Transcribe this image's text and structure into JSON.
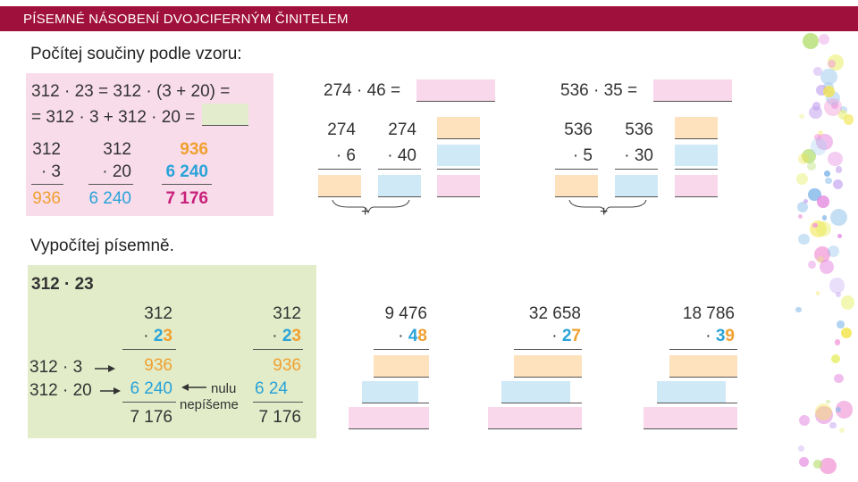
{
  "header": {
    "title": "PÍSEMNÉ NÁSOBENÍ DVOJCIFERNÝM ČINITELEM"
  },
  "section1": {
    "heading": "Počítej součiny podle vzoru:",
    "example": {
      "line1": "312 · 23 = 312 · (3 + 20) =",
      "line2": "= 312 · 3 + 312 · 20 =",
      "col1": {
        "top": "312",
        "mult": "· 3",
        "result": "936"
      },
      "col2": {
        "top": "312",
        "mult": "· 20",
        "result": "6 240"
      },
      "col3": {
        "a": "936",
        "b": "6 240",
        "sum": "7 176"
      }
    },
    "task1": {
      "expr": "274 · 46 =",
      "col1": {
        "top": "274",
        "mult": "· 6"
      },
      "col2": {
        "top": "274",
        "mult": "· 40"
      },
      "plus": "+"
    },
    "task2": {
      "expr": "536 · 35 =",
      "col1": {
        "top": "536",
        "mult": "· 5"
      },
      "col2": {
        "top": "536",
        "mult": "· 30"
      },
      "plus": "+"
    }
  },
  "section2": {
    "heading": "Vypočítej písemně.",
    "example": {
      "title": "312 · 23",
      "left": {
        "top": "312",
        "dot": "· ",
        "d1": "2",
        "d2": "3",
        "p1": "936",
        "p2": "6 240",
        "sum": "7 176"
      },
      "right": {
        "top": "312",
        "dot": "· ",
        "d1": "2",
        "d2": "3",
        "p1": "936",
        "p2": "6 24",
        "sum": "7 176"
      },
      "row1_label": "312 · 3",
      "row2_label": "312 · 20",
      "note_line1": "nulu",
      "note_line2": "nepíšeme"
    },
    "tasks": [
      {
        "top": "9 476",
        "dot": "· ",
        "d1": "4",
        "d2": "8"
      },
      {
        "top": "32 658",
        "dot": "· ",
        "d1": "2",
        "d2": "7"
      },
      {
        "top": "18 786",
        "dot": "· ",
        "d1": "3",
        "d2": "9"
      }
    ]
  },
  "colors": {
    "header": "#a0103c",
    "pink": "#f8d8ea",
    "orange": "#fde2bd",
    "blue": "#cfe9f7",
    "green": "#e3edcd",
    "tens_digit": "#2aa3d8",
    "units_digit": "#f0a030"
  }
}
